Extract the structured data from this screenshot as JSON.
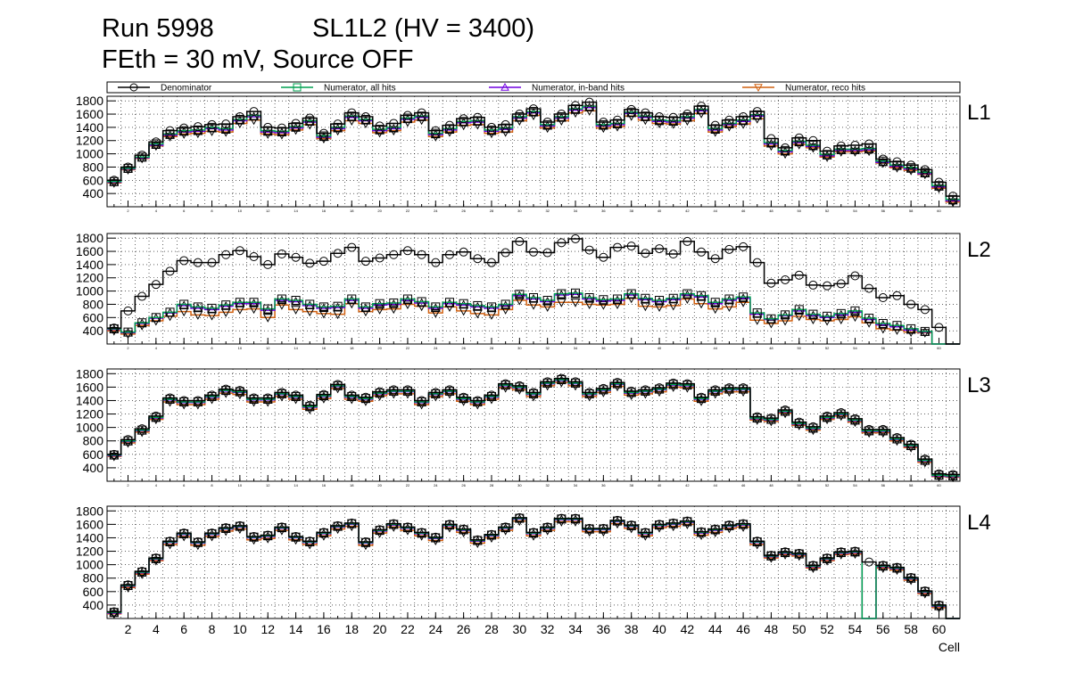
{
  "header": {
    "run": "Run 5998",
    "sl": "SL1L2 (HV = 3400)",
    "subtitle": "FEth = 30 mV, Source OFF"
  },
  "chart_data": {
    "type": "line",
    "title": "Run 5998 SL1L2 (HV = 3400)",
    "xlabel": "Cell",
    "x": [
      1,
      2,
      3,
      4,
      5,
      6,
      7,
      8,
      9,
      10,
      11,
      12,
      13,
      14,
      15,
      16,
      17,
      18,
      19,
      20,
      21,
      22,
      23,
      24,
      25,
      26,
      27,
      28,
      29,
      30,
      31,
      32,
      33,
      34,
      35,
      36,
      37,
      38,
      39,
      40,
      41,
      42,
      43,
      44,
      45,
      46,
      47,
      48,
      49,
      50,
      51,
      52,
      53,
      54,
      55,
      56,
      57,
      58,
      59,
      60,
      61
    ],
    "xlim": [
      1,
      61
    ],
    "ylim": [
      200,
      1870
    ],
    "x_ticks": [
      2,
      4,
      6,
      8,
      10,
      12,
      14,
      16,
      18,
      20,
      22,
      24,
      26,
      28,
      30,
      32,
      34,
      36,
      38,
      40,
      42,
      44,
      46,
      48,
      50,
      52,
      54,
      56,
      58,
      60
    ],
    "y_ticks": [
      400,
      600,
      800,
      1000,
      1200,
      1400,
      1600,
      1800
    ],
    "legend": [
      {
        "name": "Denominator",
        "color": "#000000",
        "marker": "circle"
      },
      {
        "name": "Numerator, all hits",
        "color": "#00a050",
        "marker": "square"
      },
      {
        "name": "Numerator, in-band hits",
        "color": "#7000e0",
        "marker": "triangle-up"
      },
      {
        "name": "Numerator, reco hits",
        "color": "#d06010",
        "marker": "triangle-down"
      }
    ],
    "panels": [
      {
        "label": "L1",
        "denominator": [
          600,
          800,
          980,
          1180,
          1350,
          1390,
          1410,
          1440,
          1450,
          1560,
          1640,
          1400,
          1390,
          1460,
          1540,
          1310,
          1450,
          1620,
          1560,
          1420,
          1460,
          1580,
          1620,
          1350,
          1430,
          1530,
          1550,
          1400,
          1440,
          1600,
          1680,
          1480,
          1600,
          1730,
          1780,
          1480,
          1510,
          1670,
          1620,
          1560,
          1550,
          1600,
          1720,
          1430,
          1510,
          1560,
          1640,
          1230,
          1090,
          1240,
          1200,
          1040,
          1120,
          1130,
          1150,
          920,
          880,
          830,
          760,
          570,
          360
        ],
        "numerator": [
          580,
          780,
          950,
          1150,
          1300,
          1350,
          1360,
          1400,
          1380,
          1520,
          1580,
          1350,
          1340,
          1410,
          1500,
          1270,
          1400,
          1570,
          1520,
          1370,
          1400,
          1540,
          1570,
          1310,
          1380,
          1490,
          1500,
          1360,
          1390,
          1560,
          1640,
          1440,
          1560,
          1680,
          1720,
          1440,
          1460,
          1630,
          1570,
          1510,
          1500,
          1560,
          1670,
          1380,
          1460,
          1510,
          1590,
          1170,
          1050,
          1190,
          1130,
          990,
          1070,
          1070,
          1080,
          890,
          830,
          790,
          720,
          520,
          310
        ],
        "inband": [
          570,
          770,
          940,
          1130,
          1280,
          1330,
          1340,
          1380,
          1360,
          1500,
          1560,
          1330,
          1320,
          1390,
          1480,
          1250,
          1380,
          1550,
          1500,
          1350,
          1380,
          1520,
          1550,
          1290,
          1360,
          1470,
          1480,
          1340,
          1370,
          1540,
          1620,
          1420,
          1540,
          1660,
          1700,
          1420,
          1440,
          1610,
          1550,
          1490,
          1480,
          1540,
          1650,
          1360,
          1440,
          1490,
          1570,
          1150,
          1030,
          1170,
          1110,
          970,
          1050,
          1050,
          1060,
          870,
          810,
          770,
          700,
          500,
          290
        ],
        "reco": [
          560,
          760,
          930,
          1120,
          1260,
          1300,
          1310,
          1340,
          1330,
          1460,
          1510,
          1300,
          1290,
          1360,
          1440,
          1230,
          1350,
          1500,
          1460,
          1320,
          1350,
          1480,
          1510,
          1260,
          1330,
          1430,
          1440,
          1310,
          1330,
          1500,
          1580,
          1390,
          1500,
          1620,
          1650,
          1390,
          1410,
          1570,
          1510,
          1460,
          1450,
          1500,
          1610,
          1330,
          1410,
          1450,
          1530,
          1120,
          1000,
          1140,
          1090,
          950,
          1030,
          1030,
          1040,
          860,
          790,
          750,
          690,
          480,
          270
        ]
      },
      {
        "label": "L2",
        "denominator": [
          440,
          700,
          920,
          1100,
          1300,
          1460,
          1430,
          1430,
          1550,
          1610,
          1520,
          1400,
          1560,
          1510,
          1420,
          1450,
          1570,
          1660,
          1450,
          1500,
          1550,
          1610,
          1550,
          1430,
          1550,
          1590,
          1490,
          1430,
          1580,
          1750,
          1590,
          1580,
          1730,
          1790,
          1620,
          1510,
          1660,
          1680,
          1570,
          1640,
          1560,
          1750,
          1590,
          1490,
          1630,
          1670,
          1430,
          1120,
          1170,
          1240,
          1090,
          1080,
          1110,
          1230,
          1040,
          900,
          930,
          800,
          720,
          450,
          200
        ],
        "numerator": [
          430,
          380,
          520,
          600,
          680,
          800,
          760,
          740,
          790,
          830,
          830,
          730,
          880,
          860,
          800,
          760,
          770,
          880,
          760,
          810,
          820,
          880,
          840,
          760,
          830,
          810,
          780,
          760,
          800,
          950,
          900,
          860,
          960,
          970,
          900,
          870,
          880,
          960,
          890,
          860,
          890,
          960,
          930,
          830,
          880,
          910,
          670,
          580,
          640,
          720,
          650,
          620,
          660,
          700,
          590,
          510,
          480,
          430,
          390,
          200,
          200
        ],
        "inband": [
          420,
          370,
          510,
          590,
          670,
          780,
          740,
          720,
          770,
          810,
          810,
          710,
          860,
          840,
          780,
          740,
          750,
          860,
          740,
          790,
          800,
          860,
          820,
          740,
          810,
          790,
          760,
          740,
          780,
          930,
          880,
          840,
          940,
          950,
          880,
          850,
          860,
          940,
          870,
          840,
          870,
          940,
          910,
          810,
          860,
          890,
          650,
          570,
          630,
          700,
          630,
          600,
          640,
          680,
          570,
          490,
          460,
          410,
          380,
          200,
          200
        ],
        "reco": [
          400,
          350,
          480,
          550,
          620,
          690,
          640,
          630,
          680,
          720,
          730,
          600,
          790,
          720,
          690,
          660,
          650,
          810,
          690,
          720,
          730,
          800,
          770,
          670,
          760,
          700,
          660,
          640,
          720,
          860,
          790,
          760,
          830,
          830,
          800,
          790,
          800,
          890,
          770,
          760,
          780,
          880,
          810,
          730,
          760,
          830,
          560,
          510,
          550,
          620,
          570,
          550,
          570,
          610,
          520,
          430,
          410,
          380,
          370,
          200,
          200
        ]
      },
      {
        "label": "L3",
        "denominator": [
          600,
          820,
          980,
          1170,
          1440,
          1400,
          1400,
          1480,
          1570,
          1550,
          1440,
          1440,
          1520,
          1480,
          1330,
          1490,
          1640,
          1480,
          1450,
          1530,
          1560,
          1560,
          1400,
          1520,
          1560,
          1450,
          1400,
          1480,
          1650,
          1620,
          1520,
          1680,
          1730,
          1680,
          1520,
          1580,
          1670,
          1540,
          1560,
          1590,
          1660,
          1650,
          1450,
          1560,
          1590,
          1590,
          1160,
          1140,
          1260,
          1080,
          1010,
          1170,
          1220,
          1130,
          970,
          970,
          850,
          750,
          530,
          310,
          300
        ],
        "numerator": [
          590,
          800,
          960,
          1150,
          1420,
          1380,
          1380,
          1460,
          1550,
          1530,
          1420,
          1420,
          1500,
          1460,
          1310,
          1470,
          1620,
          1460,
          1430,
          1510,
          1540,
          1540,
          1380,
          1500,
          1540,
          1430,
          1380,
          1460,
          1630,
          1600,
          1500,
          1660,
          1710,
          1660,
          1500,
          1560,
          1650,
          1520,
          1540,
          1570,
          1640,
          1630,
          1430,
          1540,
          1570,
          1570,
          1140,
          1120,
          1240,
          1060,
          990,
          1150,
          1200,
          1110,
          950,
          950,
          830,
          730,
          510,
          290,
          280
        ],
        "inband": [
          580,
          790,
          950,
          1140,
          1410,
          1370,
          1370,
          1450,
          1540,
          1520,
          1410,
          1410,
          1490,
          1450,
          1300,
          1460,
          1610,
          1450,
          1420,
          1500,
          1530,
          1530,
          1370,
          1490,
          1530,
          1420,
          1370,
          1450,
          1620,
          1590,
          1490,
          1650,
          1700,
          1650,
          1490,
          1550,
          1640,
          1510,
          1530,
          1560,
          1630,
          1620,
          1420,
          1530,
          1560,
          1560,
          1130,
          1110,
          1230,
          1050,
          980,
          1140,
          1190,
          1100,
          940,
          940,
          820,
          720,
          500,
          280,
          270
        ],
        "reco": [
          570,
          770,
          930,
          1120,
          1380,
          1340,
          1340,
          1420,
          1510,
          1490,
          1380,
          1380,
          1460,
          1420,
          1270,
          1430,
          1580,
          1420,
          1390,
          1470,
          1500,
          1500,
          1340,
          1460,
          1500,
          1390,
          1340,
          1420,
          1590,
          1560,
          1460,
          1620,
          1670,
          1620,
          1460,
          1520,
          1610,
          1480,
          1500,
          1530,
          1600,
          1590,
          1390,
          1500,
          1530,
          1530,
          1110,
          1090,
          1210,
          1030,
          960,
          1120,
          1170,
          1080,
          920,
          920,
          800,
          700,
          480,
          270,
          260
        ]
      },
      {
        "label": "L4",
        "denominator": [
          300,
          700,
          900,
          1100,
          1350,
          1470,
          1340,
          1470,
          1550,
          1580,
          1420,
          1440,
          1560,
          1420,
          1350,
          1480,
          1580,
          1620,
          1340,
          1520,
          1610,
          1560,
          1480,
          1410,
          1600,
          1530,
          1370,
          1450,
          1560,
          1700,
          1480,
          1560,
          1690,
          1690,
          1540,
          1540,
          1660,
          1590,
          1480,
          1600,
          1620,
          1650,
          1490,
          1530,
          1590,
          1610,
          1350,
          1140,
          1190,
          1170,
          990,
          1100,
          1190,
          1200,
          1040,
          990,
          960,
          810,
          610,
          400,
          200
        ],
        "numerator": [
          290,
          690,
          890,
          1090,
          1340,
          1460,
          1330,
          1460,
          1540,
          1570,
          1410,
          1430,
          1550,
          1410,
          1340,
          1470,
          1570,
          1610,
          1330,
          1510,
          1600,
          1550,
          1470,
          1400,
          1590,
          1520,
          1360,
          1440,
          1550,
          1690,
          1470,
          1550,
          1680,
          1680,
          1530,
          1530,
          1650,
          1580,
          1470,
          1590,
          1610,
          1640,
          1480,
          1520,
          1580,
          1600,
          1340,
          1130,
          1180,
          1160,
          980,
          1090,
          1180,
          1190,
          200,
          980,
          950,
          800,
          600,
          390,
          200
        ],
        "inband": [
          280,
          680,
          880,
          1080,
          1330,
          1450,
          1320,
          1450,
          1530,
          1560,
          1400,
          1420,
          1540,
          1400,
          1330,
          1460,
          1560,
          1600,
          1320,
          1500,
          1590,
          1540,
          1460,
          1390,
          1580,
          1510,
          1350,
          1430,
          1540,
          1680,
          1460,
          1540,
          1670,
          1670,
          1520,
          1520,
          1640,
          1570,
          1460,
          1580,
          1600,
          1630,
          1470,
          1510,
          1570,
          1590,
          1330,
          1120,
          1170,
          1150,
          970,
          1080,
          1170,
          1180,
          200,
          970,
          940,
          790,
          590,
          380,
          200
        ],
        "reco": [
          270,
          660,
          860,
          1060,
          1300,
          1420,
          1290,
          1420,
          1500,
          1530,
          1370,
          1390,
          1510,
          1370,
          1300,
          1430,
          1530,
          1570,
          1290,
          1470,
          1560,
          1510,
          1430,
          1360,
          1550,
          1480,
          1320,
          1400,
          1510,
          1650,
          1430,
          1510,
          1640,
          1640,
          1490,
          1490,
          1610,
          1540,
          1430,
          1550,
          1570,
          1600,
          1440,
          1480,
          1540,
          1560,
          1300,
          1100,
          1150,
          1130,
          950,
          1060,
          1150,
          1160,
          200,
          950,
          920,
          770,
          570,
          360,
          200
        ]
      }
    ]
  }
}
